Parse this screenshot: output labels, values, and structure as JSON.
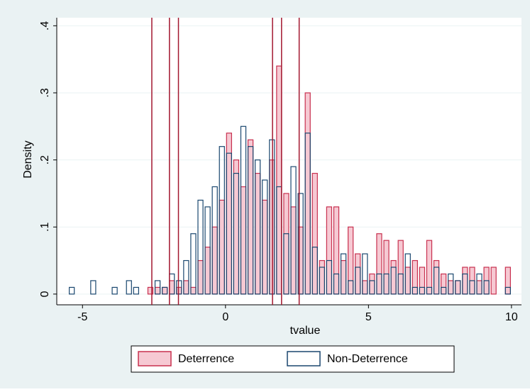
{
  "chart_data": {
    "type": "histogram",
    "x_label": "tvalue",
    "y_label": "Density",
    "bins": [
      -5.5,
      -5.25,
      -5,
      -4.75,
      -4.5,
      -4.25,
      -4,
      -3.75,
      -3.5,
      -3.25,
      -3,
      -2.75,
      -2.5,
      -2.25,
      -2,
      -1.75,
      -1.5,
      -1.25,
      -1,
      -0.75,
      -0.5,
      -0.25,
      0,
      0.25,
      0.5,
      0.75,
      1,
      1.25,
      1.5,
      1.75,
      2,
      2.25,
      2.5,
      2.75,
      3,
      3.25,
      3.5,
      3.75,
      4,
      4.25,
      4.5,
      4.75,
      5,
      5.25,
      5.5,
      5.75,
      6,
      6.25,
      6.5,
      6.75,
      7,
      7.25,
      7.5,
      7.75,
      8,
      8.25,
      8.5,
      8.75,
      9,
      9.25,
      9.5,
      9.75,
      10
    ],
    "series": [
      {
        "name": "Deterrence",
        "color": "#c8304f",
        "fill": "#f6c9d3",
        "values": [
          0,
          0,
          0,
          0,
          0,
          0,
          0,
          0,
          0,
          0,
          0,
          0.01,
          0.01,
          0.01,
          0.02,
          0.01,
          0.02,
          0.01,
          0.05,
          0.07,
          0.1,
          0.14,
          0.24,
          0.2,
          0.16,
          0.23,
          0.18,
          0.14,
          0.2,
          0.34,
          0.15,
          0.13,
          0.1,
          0.3,
          0.18,
          0.05,
          0.13,
          0.13,
          0.05,
          0.1,
          0.06,
          0.02,
          0.03,
          0.09,
          0.08,
          0.05,
          0.08,
          0.04,
          0.05,
          0.04,
          0.08,
          0.05,
          0.03,
          0.02,
          0.02,
          0.04,
          0.04,
          0.02,
          0.04,
          0.04,
          0,
          0.04
        ]
      },
      {
        "name": "Non-Deterrence",
        "color": "#1a476f",
        "fill": "none",
        "values": [
          0.01,
          0,
          0,
          0.02,
          0,
          0,
          0.01,
          0,
          0.02,
          0.01,
          0,
          0,
          0.02,
          0.01,
          0.03,
          0.02,
          0.05,
          0.09,
          0.14,
          0.13,
          0.16,
          0.22,
          0.21,
          0.18,
          0.25,
          0.22,
          0.2,
          0.17,
          0.23,
          0.16,
          0.09,
          0.19,
          0.15,
          0.24,
          0.07,
          0.04,
          0.05,
          0.03,
          0.06,
          0.02,
          0.04,
          0.06,
          0.02,
          0.03,
          0.03,
          0.04,
          0.03,
          0.06,
          0.01,
          0.01,
          0.01,
          0.04,
          0.01,
          0.03,
          0.02,
          0.03,
          0.02,
          0.03,
          0.02,
          0,
          0,
          0.01
        ]
      }
    ],
    "reference_lines": {
      "color": "#a3172f",
      "values": [
        -2.576,
        -1.96,
        -1.645,
        1.645,
        1.96,
        2.576
      ]
    },
    "xlim": [
      -5.9,
      10.35
    ],
    "xticks": [
      -5,
      0,
      5,
      10
    ],
    "ylim": [
      -0.016,
      0.412
    ],
    "yticks": [
      0,
      {
        "value": 0.1,
        "label": ".1"
      },
      {
        "value": 0.2,
        "label": ".2"
      },
      {
        "value": 0.3,
        "label": ".3"
      },
      {
        "value": 0.4,
        "label": ".4"
      }
    ],
    "grid": true
  }
}
